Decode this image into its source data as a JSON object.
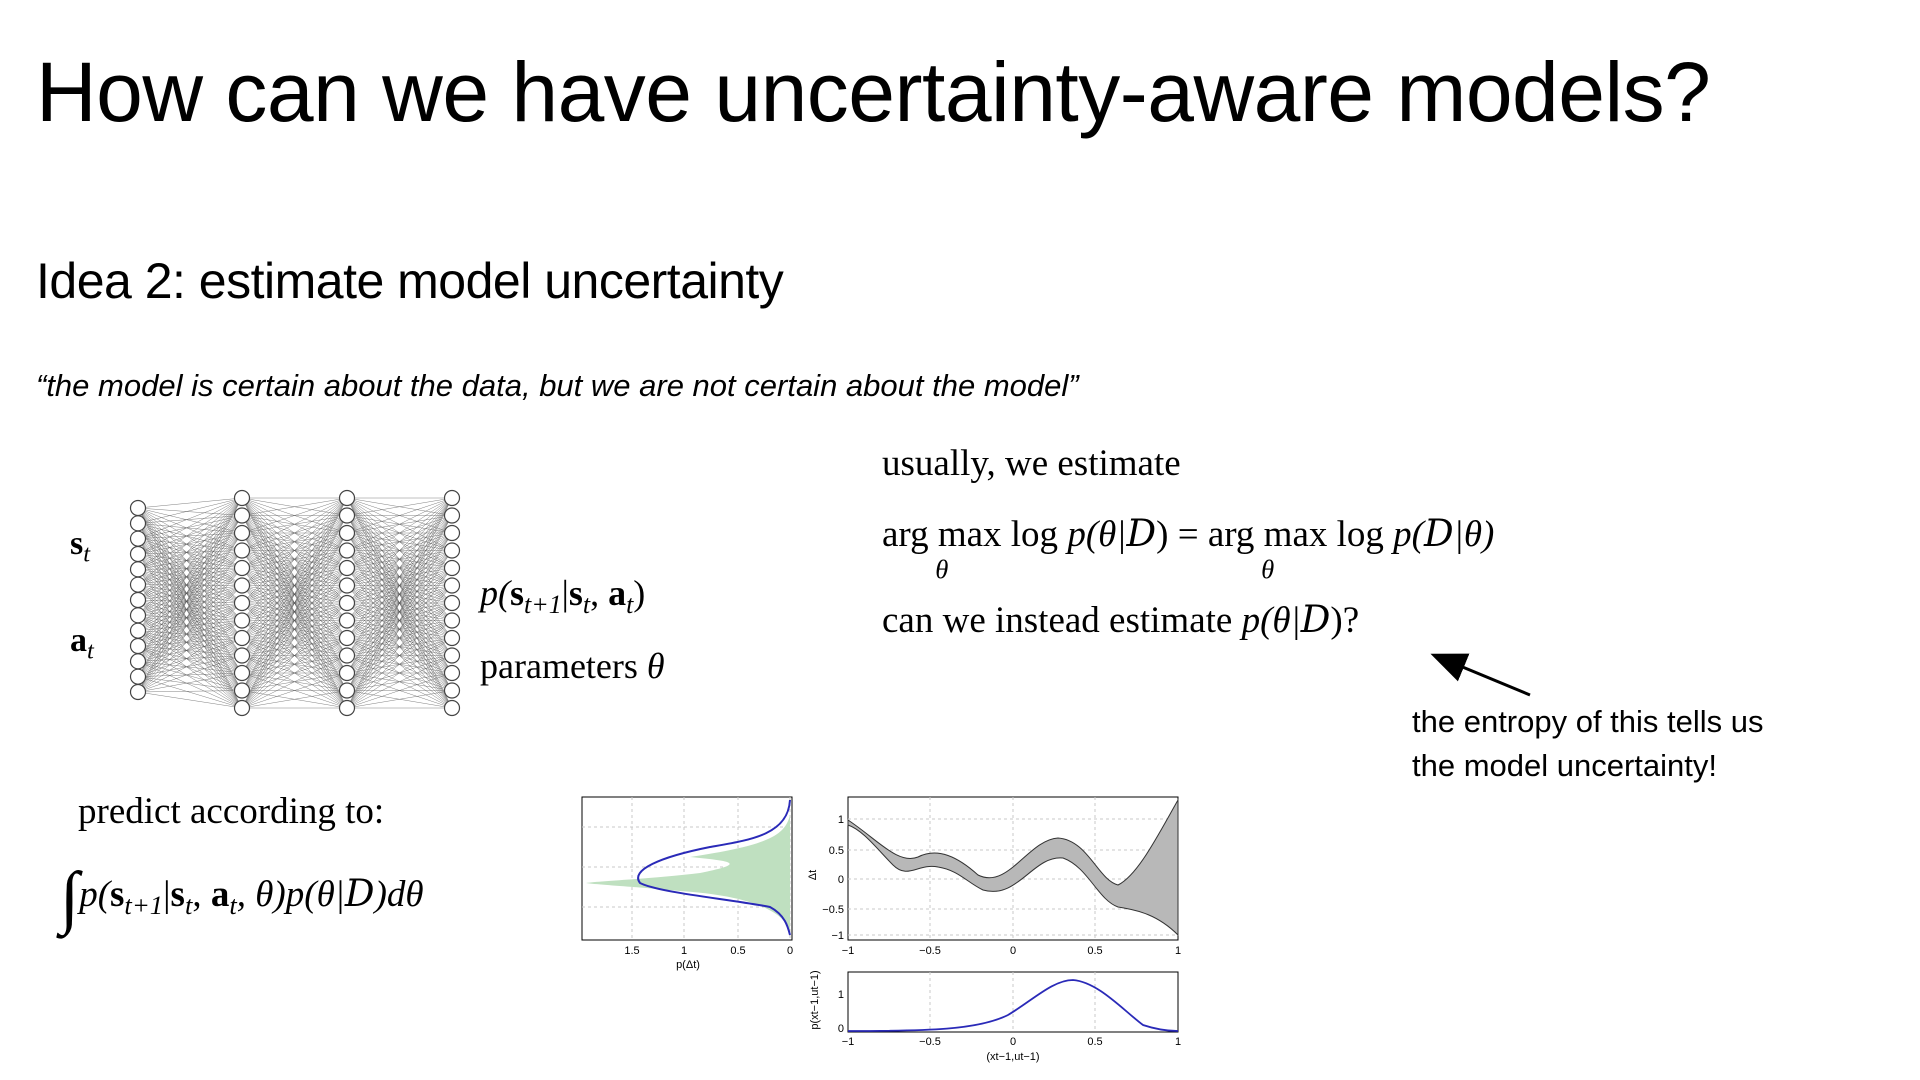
{
  "slide": {
    "title": "How can we have uncertainty-aware models?",
    "subtitle": "Idea 2: estimate model uncertainty",
    "quote": "“the model is certain about the data, but we are not certain about the model”"
  },
  "network": {
    "input_s_label": "s",
    "input_s_sub": "t",
    "input_a_label": "a",
    "input_a_sub": "t",
    "output_expr_prefix": "p(",
    "output_expr_s": "s",
    "output_expr_s_sub": "t+1",
    "output_expr_mid": "|",
    "output_expr_s2": "s",
    "output_expr_s2_sub": "t",
    "output_expr_comma": ", ",
    "output_expr_a": "a",
    "output_expr_a_sub": "t",
    "output_expr_close": ")",
    "params_label": "parameters ",
    "params_symbol": "θ"
  },
  "estimate": {
    "line1": "usually, we estimate",
    "argmax": "arg max",
    "argmax_sub": "θ",
    "log_p": " log ",
    "lhs_expr": "p(θ|",
    "D": "D",
    "close": ")",
    "equals": " = ",
    "rhs_expr": "p(",
    "rhs_mid": "|θ)",
    "line3": "can we instead estimate ",
    "line3_expr": "p(θ|",
    "line3_close": ")?"
  },
  "annotation": {
    "text": "the entropy of this tells us\nthe model uncertainty!"
  },
  "predict": {
    "label": "predict according to:",
    "integral": "∫",
    "expr_p": "p(",
    "s1": "s",
    "s1_sub": "t+1",
    "bar": "|",
    "s2": "s",
    "s2_sub": "t",
    "comma": ", ",
    "a": "a",
    "a_sub": "t",
    "theta_close": ", θ)p(θ|",
    "D": "D",
    "tail": ")dθ"
  },
  "colors": {
    "text": "#000000",
    "arrow": "#000000",
    "density_line": "#2a2ab8",
    "density_fill": "#bfe0c0",
    "gp_fill": "#b8b8b8",
    "grid": "#c8c8c8"
  },
  "figures": {
    "left_panel": {
      "x_ticks": [
        "1.5",
        "1",
        "0.5",
        "0"
      ],
      "xlabel": "p(Δt)"
    },
    "right_top": {
      "x_ticks": [
        "−1",
        "−0.5",
        "0",
        "0.5",
        "1"
      ],
      "y_ticks": [
        "1",
        "0.5",
        "0",
        "−0.5",
        "−1"
      ],
      "ylabel": "Δt"
    },
    "right_bottom": {
      "x_ticks": [
        "−1",
        "−0.5",
        "0",
        "0.5",
        "1"
      ],
      "y_ticks": [
        "1",
        "0"
      ],
      "xlabel": "(xt−1,ut−1)",
      "ylabel": "p(xt−1,ut−1)"
    }
  }
}
